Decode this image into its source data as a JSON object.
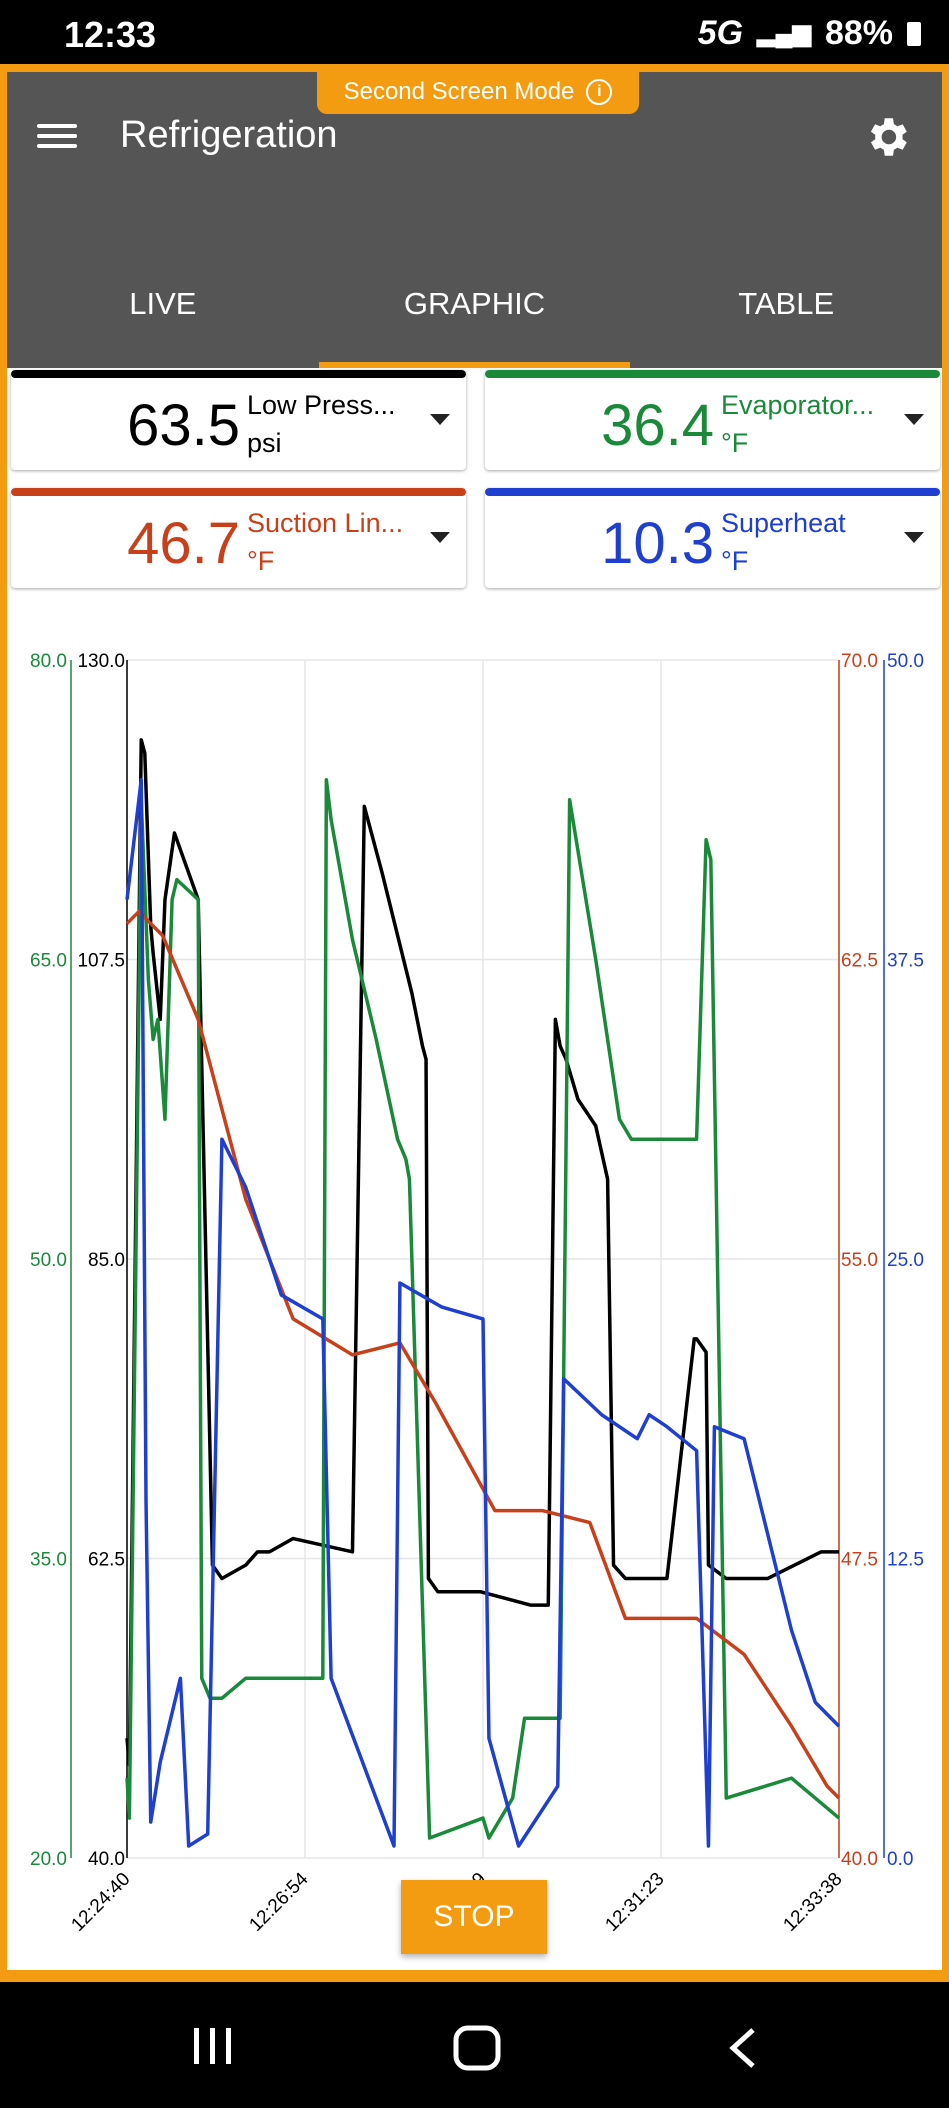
{
  "status_bar": {
    "time": "12:33",
    "battery": "88%",
    "network": "5G"
  },
  "badge": {
    "label": "Second Screen Mode"
  },
  "header": {
    "title": "Refrigeration"
  },
  "tabs": [
    {
      "label": "LIVE"
    },
    {
      "label": "GRAPHIC",
      "active": true
    },
    {
      "label": "TABLE"
    }
  ],
  "cards": [
    {
      "value": "63.5",
      "label": "Low Press...",
      "unit": "psi",
      "color": "#000000"
    },
    {
      "value": "36.4",
      "label": "Evaporator...",
      "unit": "°F",
      "color": "#1a8a3a"
    },
    {
      "value": "46.7",
      "label": "Suction Lin...",
      "unit": "°F",
      "color": "#c8401a"
    },
    {
      "value": "10.3",
      "label": "Superheat",
      "unit": "°F",
      "color": "#1f3fd0"
    }
  ],
  "chart_data": {
    "type": "line",
    "x_tick_labels": [
      "12:24:40",
      "12:26:54",
      "12:29:09",
      "12:31:23",
      "12:33:38"
    ],
    "x_range": [
      "12:24:40",
      "12:33:38"
    ],
    "axes": [
      {
        "color": "#1a8a3a",
        "ticks": [
          "20.0",
          "35.0",
          "50.0",
          "65.0",
          "80.0"
        ],
        "range": [
          20,
          80
        ]
      },
      {
        "color": "#000000",
        "ticks": [
          "40.0",
          "62.5",
          "85.0",
          "107.5",
          "130.0"
        ],
        "range": [
          40,
          130
        ]
      },
      {
        "color": "#c8401a",
        "ticks": [
          "40.0",
          "47.5",
          "55.0",
          "62.5",
          "70.0"
        ],
        "range": [
          40,
          70
        ]
      },
      {
        "color": "#1f3fd0",
        "ticks": [
          "0.0",
          "12.5",
          "25.0",
          "37.5",
          "50.0"
        ],
        "range": [
          0,
          50
        ]
      }
    ],
    "grid": true,
    "series": [
      {
        "name": "Low Press...",
        "color": "#000000",
        "axis": 1,
        "t": [
          0,
          2,
          12,
          15,
          20,
          22,
          28,
          32,
          40,
          48,
          60,
          72,
          80,
          100,
          110,
          112,
          120,
          140,
          190,
          200,
          215,
          240,
          249,
          252,
          254,
          262,
          275,
          286,
          298,
          340,
          355,
          361,
          365,
          370,
          380,
          395,
          405,
          410,
          420,
          455,
          478,
          480,
          488,
          490,
          505,
          540,
          585,
          600
        ],
        "v": [
          49,
          47,
          124,
          123,
          110,
          108,
          103,
          112,
          117,
          115,
          112,
          62,
          61,
          62,
          63,
          63,
          63,
          64,
          63,
          119,
          114,
          105,
          101,
          100,
          61,
          60,
          60,
          60,
          60,
          59,
          59,
          103,
          101,
          100,
          97,
          95,
          91,
          62,
          61,
          61,
          79,
          79,
          78,
          62,
          61,
          61,
          63,
          63
        ]
      },
      {
        "name": "Evaporator...",
        "color": "#1a8a3a",
        "axis": 0,
        "t": [
          0,
          2,
          12,
          14,
          18,
          22,
          26,
          32,
          38,
          42,
          60,
          63,
          70,
          80,
          100,
          130,
          165,
          168,
          172,
          190,
          210,
          228,
          235,
          238,
          255,
          300,
          305,
          325,
          335,
          365,
          373,
          395,
          415,
          425,
          480,
          488,
          492,
          505,
          560,
          600
        ],
        "v": [
          24,
          22,
          73,
          70,
          64,
          61,
          62,
          57,
          68,
          69,
          68,
          29,
          28,
          28,
          29,
          29,
          29,
          74,
          72,
          66,
          61,
          56,
          55,
          54,
          21,
          22,
          21,
          23,
          27,
          27,
          73,
          65,
          57,
          56,
          56,
          71,
          70,
          23,
          24,
          22
        ]
      }
    ]
  },
  "stop_button": {
    "label": "STOP"
  }
}
